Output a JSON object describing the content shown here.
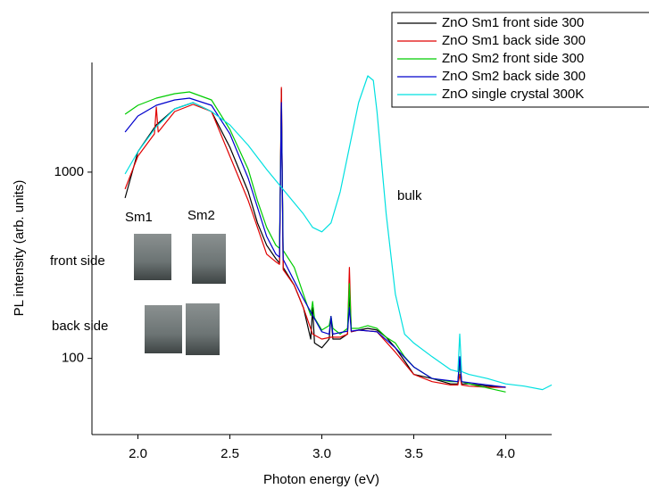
{
  "chart_data": {
    "type": "line",
    "x_label": "Photon energy (eV)",
    "y_label": "PL intensity (arb. units)",
    "log_y": true,
    "xlim": [
      1.75,
      4.25
    ],
    "ylim": [
      39,
      3880
    ],
    "xticks": [
      {
        "value": 2,
        "label": "2.0"
      },
      {
        "value": 2.5,
        "label": "2.5"
      },
      {
        "value": 3,
        "label": "3.0"
      },
      {
        "value": 3.5,
        "label": "3.5"
      },
      {
        "value": 4,
        "label": "4.0"
      }
    ],
    "yticks": [
      100,
      1000
    ],
    "legend": "top-right",
    "annotations": [
      "bulk",
      "Sm1",
      "Sm2",
      "front side",
      "back side"
    ],
    "series": [
      {
        "name": "ZnO Sm1 front side 300",
        "color": "#000000",
        "x": [
          1.93,
          2.0,
          2.1,
          2.2,
          2.3,
          2.4,
          2.5,
          2.6,
          2.65,
          2.7,
          2.75,
          2.77,
          2.78,
          2.79,
          2.85,
          2.9,
          2.94,
          2.95,
          2.96,
          3.0,
          3.04,
          3.05,
          3.06,
          3.1,
          3.14,
          3.15,
          3.16,
          3.2,
          3.25,
          3.3,
          3.35,
          3.4,
          3.45,
          3.5,
          3.6,
          3.7,
          3.74,
          3.75,
          3.76,
          3.8,
          3.9,
          4.0
        ],
        "values": [
          726,
          1288,
          1793,
          2186,
          2362,
          2116,
          1361,
          785,
          534,
          405,
          343,
          325,
          2786,
          308,
          247,
          187,
          127,
          187,
          121,
          114,
          127,
          168,
          127,
          127,
          135,
          221,
          139,
          142,
          145,
          142,
          130,
          114,
          97,
          82,
          78,
          73,
          73,
          102,
          73,
          73,
          71,
          70
        ]
      },
      {
        "name": "ZnO Sm1 back side 300",
        "color": "#e00000",
        "x": [
          1.93,
          2.0,
          2.09,
          2.1,
          2.11,
          2.2,
          2.3,
          2.4,
          2.5,
          2.6,
          2.7,
          2.75,
          2.77,
          2.78,
          2.79,
          2.85,
          2.9,
          2.95,
          3.0,
          3.05,
          3.1,
          3.14,
          3.15,
          3.16,
          3.2,
          3.3,
          3.4,
          3.5,
          3.6,
          3.7,
          3.74,
          3.75,
          3.76,
          3.8,
          3.9,
          4.0
        ],
        "values": [
          811,
          1219,
          1606,
          2235,
          1642,
          2116,
          2310,
          2116,
          1219,
          703,
          363,
          330,
          320,
          2848,
          300,
          247,
          187,
          135,
          127,
          130,
          130,
          135,
          308,
          139,
          142,
          139,
          108,
          82,
          75,
          72,
          72,
          82,
          72,
          71,
          70,
          70
        ]
      },
      {
        "name": "ZnO Sm2 front side 300",
        "color": "#00cc00",
        "x": [
          1.93,
          2.0,
          2.1,
          2.2,
          2.28,
          2.4,
          2.5,
          2.6,
          2.65,
          2.7,
          2.75,
          2.77,
          2.78,
          2.79,
          2.85,
          2.9,
          2.94,
          2.95,
          2.96,
          3.0,
          3.04,
          3.05,
          3.06,
          3.1,
          3.14,
          3.15,
          3.16,
          3.2,
          3.25,
          3.3,
          3.35,
          3.4,
          3.45,
          3.5,
          3.6,
          3.7,
          3.74,
          3.75,
          3.76,
          3.8,
          4.0
        ],
        "values": [
          2046,
          2285,
          2495,
          2637,
          2696,
          2441,
          1697,
          1034,
          703,
          505,
          405,
          390,
          2235,
          380,
          308,
          221,
          170,
          202,
          165,
          142,
          150,
          168,
          145,
          135,
          145,
          252,
          145,
          145,
          150,
          145,
          130,
          121,
          102,
          90,
          78,
          75,
          75,
          92,
          75,
          73,
          66
        ]
      },
      {
        "name": "ZnO Sm2 back side 300",
        "color": "#0000cc",
        "x": [
          1.93,
          2.0,
          2.1,
          2.2,
          2.28,
          2.4,
          2.5,
          2.6,
          2.7,
          2.75,
          2.77,
          2.78,
          2.79,
          2.9,
          3.0,
          3.04,
          3.05,
          3.06,
          3.14,
          3.15,
          3.16,
          3.2,
          3.3,
          3.4,
          3.5,
          3.6,
          3.74,
          3.75,
          3.76,
          4.0
        ],
        "values": [
          1642,
          2001,
          2285,
          2441,
          2495,
          2285,
          1606,
          926,
          452,
          363,
          350,
          2362,
          340,
          209,
          139,
          135,
          168,
          135,
          140,
          187,
          140,
          142,
          139,
          114,
          90,
          78,
          75,
          102,
          75,
          70
        ]
      },
      {
        "name": "ZnO single crystal 300K",
        "color": "#00e0e0",
        "x": [
          1.93,
          2.0,
          2.1,
          2.2,
          2.3,
          2.4,
          2.5,
          2.6,
          2.7,
          2.8,
          2.9,
          2.95,
          3.0,
          3.05,
          3.1,
          3.15,
          3.2,
          3.25,
          3.28,
          3.3,
          3.35,
          3.4,
          3.45,
          3.5,
          3.6,
          3.7,
          3.74,
          3.75,
          3.76,
          3.8,
          3.9,
          4.0,
          4.1,
          4.2,
          4.25
        ],
        "values": [
          978,
          1288,
          1754,
          2186,
          2362,
          2116,
          1793,
          1392,
          1034,
          785,
          596,
          505,
          478,
          534,
          785,
          1361,
          2362,
          3290,
          3110,
          2116,
          596,
          221,
          135,
          121,
          102,
          87,
          85,
          135,
          85,
          82,
          78,
          73,
          71,
          68,
          72
        ]
      }
    ]
  }
}
